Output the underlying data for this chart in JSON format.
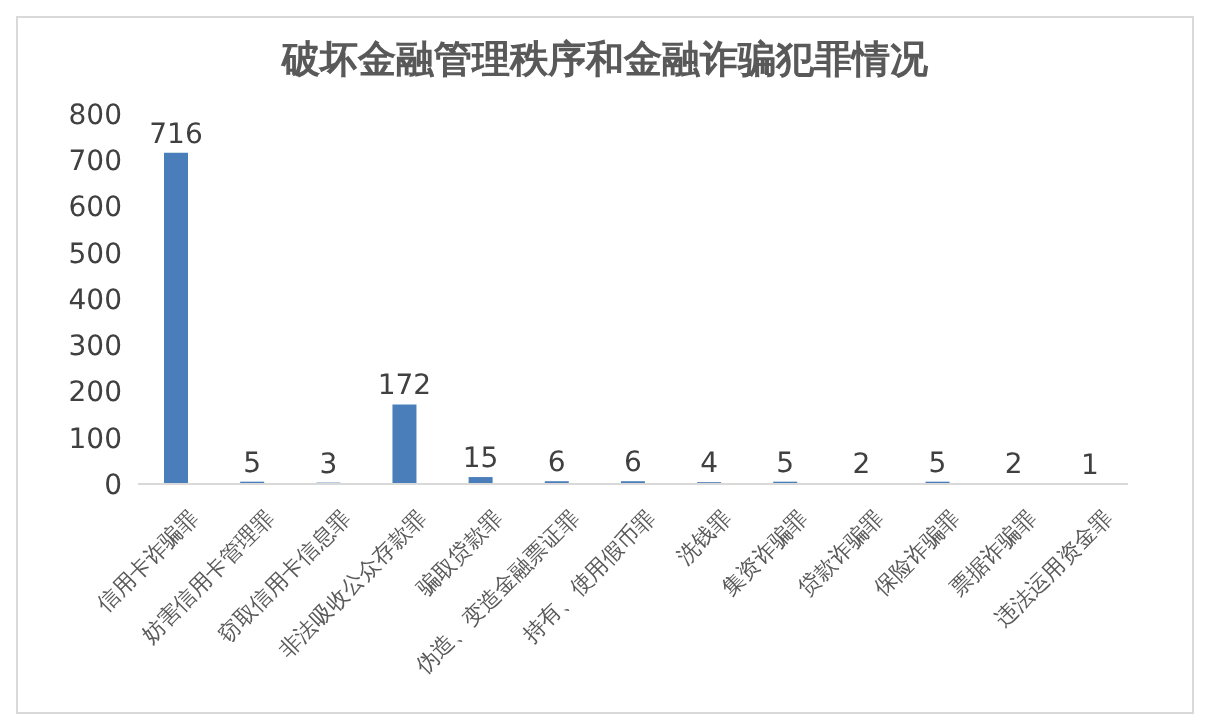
{
  "chart_data": {
    "type": "bar",
    "title": "破坏金融管理秩序和金融诈骗犯罪情况",
    "categories": [
      "信用卡诈骗罪",
      "妨害信用卡管理罪",
      "窃取信用卡信息罪",
      "非法吸收公众存款罪",
      "骗取贷款罪",
      "伪造、变造金融票证罪",
      "持有、使用假币罪",
      "洗钱罪",
      "集资诈骗罪",
      "贷款诈骗罪",
      "保险诈骗罪",
      "票据诈骗罪",
      "违法运用资金罪"
    ],
    "values": [
      716,
      5,
      3,
      172,
      15,
      6,
      6,
      4,
      5,
      2,
      5,
      2,
      1
    ],
    "color": "#4a7ebb",
    "ylim": [
      0,
      800
    ],
    "yticks": [
      0,
      100,
      200,
      300,
      400,
      500,
      600,
      700,
      800
    ],
    "data_labels": true
  }
}
